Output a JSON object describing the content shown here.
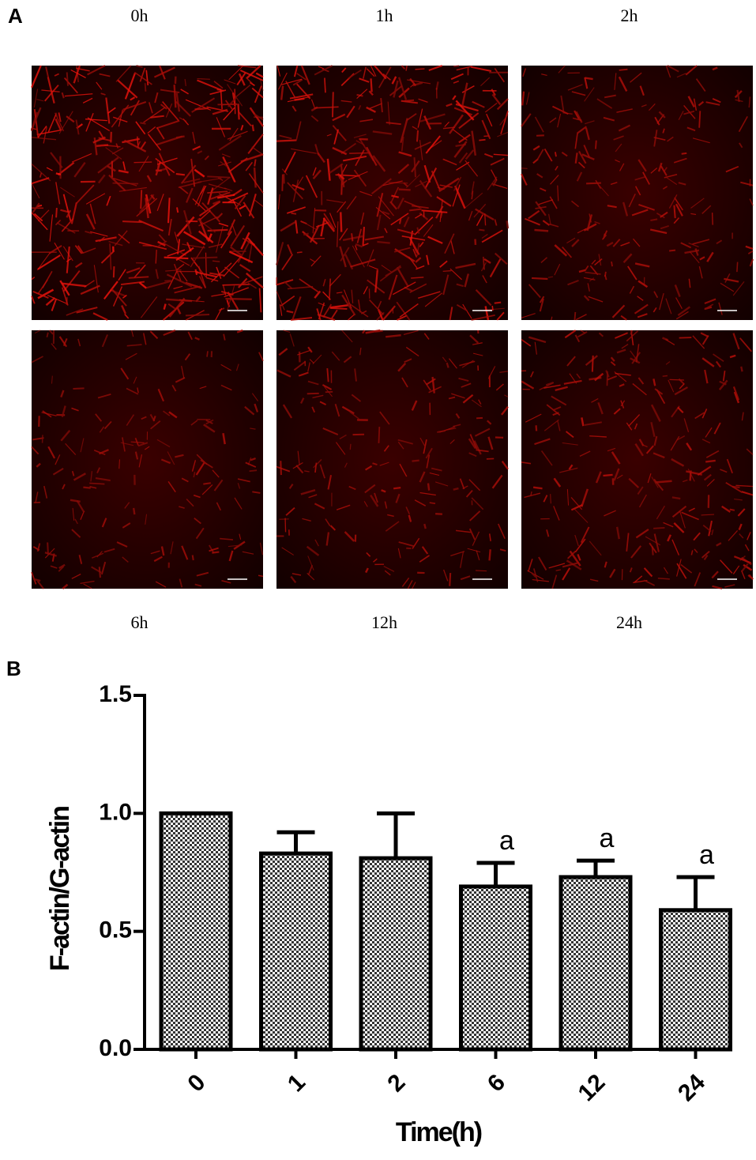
{
  "panel_a": {
    "label": "A",
    "images": [
      {
        "label": "0h"
      },
      {
        "label": "1h"
      },
      {
        "label": "2h"
      },
      {
        "label": "6h"
      },
      {
        "label": "12h"
      },
      {
        "label": "24h"
      }
    ]
  },
  "chart_data": {
    "type": "bar",
    "panel_label": "B",
    "categories": [
      "0",
      "1",
      "2",
      "6",
      "12",
      "24"
    ],
    "values": [
      1.0,
      0.83,
      0.81,
      0.69,
      0.73,
      0.59
    ],
    "errors": [
      0,
      0.09,
      0.19,
      0.1,
      0.07,
      0.14
    ],
    "annotations": [
      {
        "category": "6",
        "text": "a"
      },
      {
        "category": "12",
        "text": "a"
      },
      {
        "category": "24",
        "text": "a"
      }
    ],
    "ylim": [
      0,
      1.5
    ],
    "yticks": [
      {
        "value": 0,
        "label": "0.0"
      },
      0.5,
      {
        "value": 1,
        "label": "1.0"
      },
      1.5
    ],
    "ylabel": "F-actin/G-actin",
    "xlabel": "Time(h)",
    "color": "#000000"
  }
}
